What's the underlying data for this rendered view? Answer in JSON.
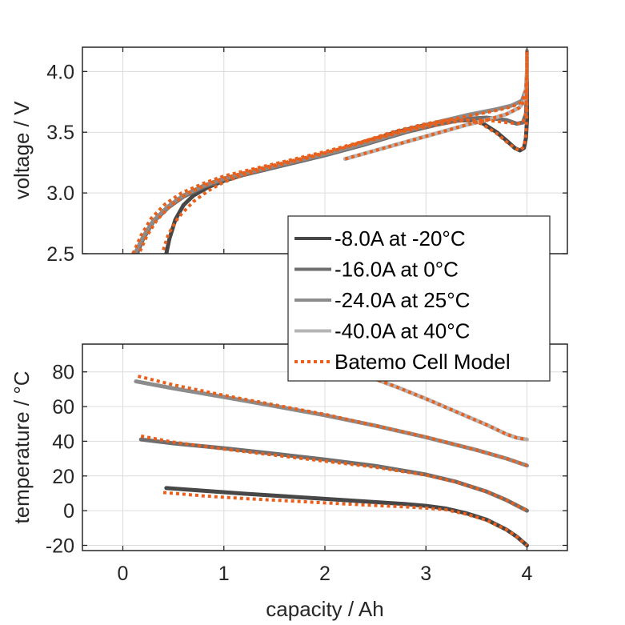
{
  "chart_data": [
    {
      "type": "line",
      "panel": "top",
      "title": "",
      "xlabel": "",
      "ylabel": "voltage / V",
      "xlim": [
        -0.4,
        4.4
      ],
      "ylim": [
        2.5,
        4.2
      ],
      "xticks": [
        0,
        1,
        2,
        3,
        4
      ],
      "yticks": [
        2.5,
        3.0,
        3.5,
        4.0
      ],
      "ytick_labels": [
        "2.5",
        "3.0",
        "3.5",
        "4.0"
      ],
      "show_xtick_labels": false,
      "grid": true,
      "series": [
        {
          "name": "-8.0A at -20°C",
          "kind": "measured",
          "color": "#474747",
          "x": [
            0.43,
            0.46,
            0.52,
            0.6,
            0.7,
            0.85,
            1.0,
            1.2,
            1.5,
            1.8,
            2.1,
            2.4,
            2.7,
            3.0,
            3.2,
            3.4,
            3.55,
            3.7,
            3.8,
            3.88,
            3.93,
            3.97,
            3.99,
            4.0,
            4.0,
            4.0
          ],
          "y": [
            2.5,
            2.62,
            2.78,
            2.9,
            2.98,
            3.05,
            3.1,
            3.15,
            3.21,
            3.27,
            3.34,
            3.42,
            3.5,
            3.56,
            3.59,
            3.6,
            3.58,
            3.5,
            3.43,
            3.37,
            3.35,
            3.37,
            3.45,
            3.6,
            3.9,
            4.17
          ]
        },
        {
          "name": "-16.0A at 0°C",
          "kind": "measured",
          "color": "#6e6e6e",
          "x": [
            0.14,
            0.2,
            0.3,
            0.45,
            0.6,
            0.8,
            1.0,
            1.3,
            1.6,
            2.0,
            2.4,
            2.8,
            3.1,
            3.4,
            3.6,
            3.8,
            3.9,
            3.96,
            3.99,
            4.0,
            4.0
          ],
          "y": [
            2.5,
            2.62,
            2.76,
            2.88,
            2.97,
            3.05,
            3.11,
            3.17,
            3.23,
            3.31,
            3.4,
            3.5,
            3.56,
            3.61,
            3.62,
            3.6,
            3.57,
            3.58,
            3.65,
            3.9,
            4.17
          ]
        },
        {
          "name": "-24.0A at 25°C",
          "kind": "measured",
          "color": "#8c8c8c",
          "x": [
            0.12,
            0.2,
            0.3,
            0.45,
            0.6,
            0.8,
            1.0,
            1.3,
            1.6,
            2.0,
            2.4,
            2.8,
            3.1,
            3.4,
            3.7,
            3.85,
            3.95,
            3.99,
            4.0,
            4.0
          ],
          "y": [
            2.5,
            2.64,
            2.77,
            2.89,
            2.98,
            3.06,
            3.12,
            3.18,
            3.24,
            3.32,
            3.41,
            3.51,
            3.58,
            3.64,
            3.69,
            3.72,
            3.76,
            3.85,
            4.0,
            4.17
          ]
        },
        {
          "name": "-40.0A at 40°C",
          "kind": "measured",
          "color": "#b4b4b4",
          "x": [
            2.2,
            2.5,
            2.8,
            3.1,
            3.4,
            3.6,
            3.8,
            3.92,
            3.98,
            4.0,
            4.0
          ],
          "y": [
            3.28,
            3.35,
            3.42,
            3.49,
            3.56,
            3.6,
            3.65,
            3.7,
            3.76,
            3.95,
            4.17
          ]
        },
        {
          "name": "Batemo Cell Model",
          "kind": "model",
          "color": "#e8601c",
          "for": "-8.0A at -20°C",
          "x": [
            0.4,
            0.45,
            0.55,
            0.7,
            0.85,
            1.0,
            1.2,
            1.5,
            1.8,
            2.1,
            2.4,
            2.7,
            3.0,
            3.2,
            3.4,
            3.55,
            3.7,
            3.8,
            3.88,
            3.93,
            3.97,
            3.99,
            4.0,
            4.0
          ],
          "y": [
            2.53,
            2.66,
            2.8,
            2.93,
            3.02,
            3.09,
            3.15,
            3.22,
            3.28,
            3.35,
            3.43,
            3.51,
            3.57,
            3.6,
            3.6,
            3.57,
            3.49,
            3.42,
            3.37,
            3.35,
            3.38,
            3.48,
            3.7,
            4.17
          ]
        },
        {
          "name": "Batemo Cell Model",
          "kind": "model",
          "color": "#e8601c",
          "for": "-16.0A at 0°C",
          "x": [
            0.17,
            0.24,
            0.34,
            0.48,
            0.63,
            0.8,
            1.0,
            1.3,
            1.6,
            2.0,
            2.4,
            2.8,
            3.1,
            3.4,
            3.6,
            3.8,
            3.9,
            3.96,
            3.99,
            4.0,
            4.0
          ],
          "y": [
            2.52,
            2.65,
            2.78,
            2.9,
            2.99,
            3.06,
            3.12,
            3.19,
            3.25,
            3.33,
            3.42,
            3.51,
            3.56,
            3.6,
            3.6,
            3.58,
            3.57,
            3.58,
            3.66,
            3.9,
            4.17
          ]
        },
        {
          "name": "Batemo Cell Model",
          "kind": "model",
          "color": "#e8601c",
          "for": "-24.0A at 25°C",
          "x": [
            0.1,
            0.18,
            0.28,
            0.42,
            0.58,
            0.8,
            1.0,
            1.3,
            1.6,
            2.0,
            2.4,
            2.8,
            3.1,
            3.4,
            3.7,
            3.85,
            3.95,
            3.99,
            4.0,
            4.0
          ],
          "y": [
            2.5,
            2.65,
            2.79,
            2.91,
            3.0,
            3.08,
            3.14,
            3.2,
            3.26,
            3.34,
            3.43,
            3.52,
            3.58,
            3.63,
            3.68,
            3.71,
            3.75,
            3.84,
            4.0,
            4.17
          ]
        },
        {
          "name": "Batemo Cell Model",
          "kind": "model",
          "color": "#e8601c",
          "for": "-40.0A at 40°C",
          "x": [
            2.2,
            2.5,
            2.8,
            3.1,
            3.4,
            3.6,
            3.8,
            3.92,
            3.98,
            4.0,
            4.0
          ],
          "y": [
            3.28,
            3.35,
            3.42,
            3.49,
            3.56,
            3.6,
            3.65,
            3.7,
            3.76,
            3.95,
            4.17
          ]
        }
      ]
    },
    {
      "type": "line",
      "panel": "bottom",
      "title": "",
      "xlabel": "capacity / Ah",
      "ylabel": "temperature / °C",
      "xlim": [
        -0.4,
        4.4
      ],
      "ylim": [
        -23,
        96
      ],
      "xticks": [
        0,
        1,
        2,
        3,
        4
      ],
      "xtick_labels": [
        "0",
        "1",
        "2",
        "3",
        "4"
      ],
      "yticks": [
        -20,
        0,
        20,
        40,
        60,
        80
      ],
      "ytick_labels": [
        "-20",
        "0",
        "20",
        "40",
        "60",
        "80"
      ],
      "grid": true,
      "series": [
        {
          "name": "-8.0A at -20°C",
          "kind": "measured",
          "color": "#474747",
          "x": [
            0.43,
            0.8,
            1.2,
            1.6,
            2.0,
            2.4,
            2.8,
            3.0,
            3.2,
            3.4,
            3.6,
            3.8,
            3.9,
            4.0
          ],
          "y": [
            13,
            11.5,
            9.8,
            8.3,
            6.8,
            5.3,
            3.8,
            2.8,
            1.2,
            -1.5,
            -5.2,
            -11,
            -15,
            -20
          ]
        },
        {
          "name": "-16.0A at 0°C",
          "kind": "measured",
          "color": "#6e6e6e",
          "x": [
            0.18,
            0.5,
            1.0,
            1.5,
            2.0,
            2.5,
            3.0,
            3.3,
            3.6,
            3.8,
            3.9,
            4.0
          ],
          "y": [
            41,
            38.8,
            36,
            32.8,
            29.5,
            25.8,
            20.8,
            16.6,
            11,
            6,
            3,
            0
          ]
        },
        {
          "name": "-24.0A at 25°C",
          "kind": "measured",
          "color": "#8c8c8c",
          "x": [
            0.13,
            0.5,
            1.0,
            1.5,
            2.0,
            2.5,
            3.0,
            3.5,
            3.8,
            4.0
          ],
          "y": [
            74.5,
            70.5,
            65.5,
            60.3,
            55,
            49,
            42.3,
            35,
            30,
            26
          ]
        },
        {
          "name": "-40.0A at 40°C",
          "kind": "measured",
          "color": "#b4b4b4",
          "x": [
            2.4,
            2.7,
            3.0,
            3.3,
            3.6,
            3.8,
            3.9,
            4.0
          ],
          "y": [
            78,
            71.5,
            64.5,
            57,
            49.5,
            44,
            42,
            41
          ]
        },
        {
          "name": "Batemo Cell Model",
          "kind": "model",
          "color": "#e8601c",
          "for": "-8.0A at -20°C",
          "x": [
            0.4,
            0.8,
            1.2,
            1.6,
            2.0,
            2.4,
            2.8,
            3.0,
            3.2,
            3.4,
            3.6,
            3.8,
            3.9,
            4.0
          ],
          "y": [
            10.5,
            8.5,
            7,
            5.8,
            4.5,
            3.3,
            2.2,
            1.5,
            0.5,
            -2,
            -5.5,
            -11,
            -15,
            -20
          ]
        },
        {
          "name": "Batemo Cell Model",
          "kind": "model",
          "color": "#e8601c",
          "for": "-16.0A at 0°C",
          "x": [
            0.18,
            0.5,
            1.0,
            1.5,
            2.0,
            2.5,
            3.0,
            3.3,
            3.6,
            3.8,
            3.9,
            4.0
          ],
          "y": [
            43,
            39.5,
            35.5,
            32,
            28.5,
            25,
            20.5,
            16.5,
            11,
            6,
            3,
            0
          ]
        },
        {
          "name": "Batemo Cell Model",
          "kind": "model",
          "color": "#e8601c",
          "for": "-24.0A at 25°C",
          "x": [
            0.15,
            0.5,
            1.0,
            1.5,
            2.0,
            2.5,
            3.0,
            3.5,
            3.8,
            4.0
          ],
          "y": [
            77.5,
            72.5,
            66.5,
            61,
            55.5,
            49,
            42.5,
            35,
            30,
            26
          ]
        },
        {
          "name": "Batemo Cell Model",
          "kind": "model",
          "color": "#e8601c",
          "for": "-40.0A at 40°C",
          "x": [
            2.35,
            2.7,
            3.0,
            3.3,
            3.6,
            3.8,
            3.9,
            4.0
          ],
          "y": [
            79,
            71.5,
            64.5,
            57,
            49.5,
            44,
            42,
            41
          ]
        }
      ]
    }
  ],
  "legend": {
    "placement": "center-right (between panels)",
    "entries": [
      {
        "label": "-8.0A at -20°C",
        "color": "#474747",
        "style": "solid"
      },
      {
        "label": "-16.0A at 0°C",
        "color": "#6e6e6e",
        "style": "solid"
      },
      {
        "label": "-24.0A at 25°C",
        "color": "#8c8c8c",
        "style": "solid"
      },
      {
        "label": "-40.0A at 40°C",
        "color": "#b4b4b4",
        "style": "solid"
      },
      {
        "label": "Batemo Cell Model",
        "color": "#e8601c",
        "style": "dotted"
      }
    ]
  }
}
